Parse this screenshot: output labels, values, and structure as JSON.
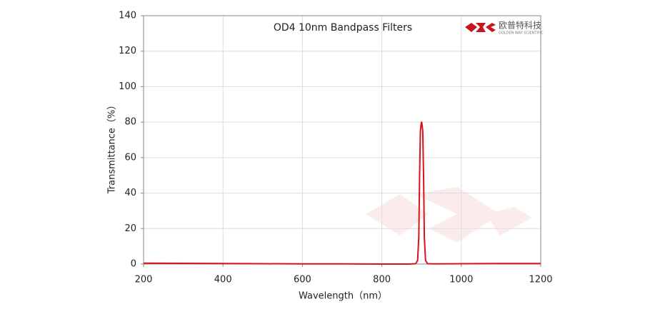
{
  "chart_data": {
    "type": "line",
    "title": "OD4 10nm Bandpass Filters",
    "x_label": "Wavelength（nm）",
    "y_label": "Transmittance（%）",
    "xlim": [
      200,
      1200
    ],
    "xticks": [
      200,
      400,
      600,
      800,
      1000,
      1200
    ],
    "ylim": [
      0,
      140
    ],
    "yticks": [
      0,
      20,
      40,
      60,
      80,
      100,
      120,
      140
    ],
    "grid": true,
    "series": [
      {
        "color": "#d7141e",
        "x": [
          200,
          300,
          400,
          500,
          600,
          700,
          800,
          870,
          885,
          890,
          893,
          895,
          897,
          899,
          900,
          901,
          903,
          905,
          907,
          910,
          915,
          930,
          1000,
          1100,
          1200
        ],
        "values": [
          0.5,
          0.4,
          0.3,
          0.2,
          0.1,
          0.1,
          0.0,
          0.0,
          0.2,
          2,
          15,
          50,
          75,
          79,
          80,
          79,
          75,
          50,
          15,
          2,
          0.2,
          0.1,
          0.2,
          0.3,
          0.3
        ]
      }
    ]
  },
  "logo": {
    "name": "欧普特科技",
    "subtitle": "GOLDEN WAY SCIENTIFIC"
  }
}
